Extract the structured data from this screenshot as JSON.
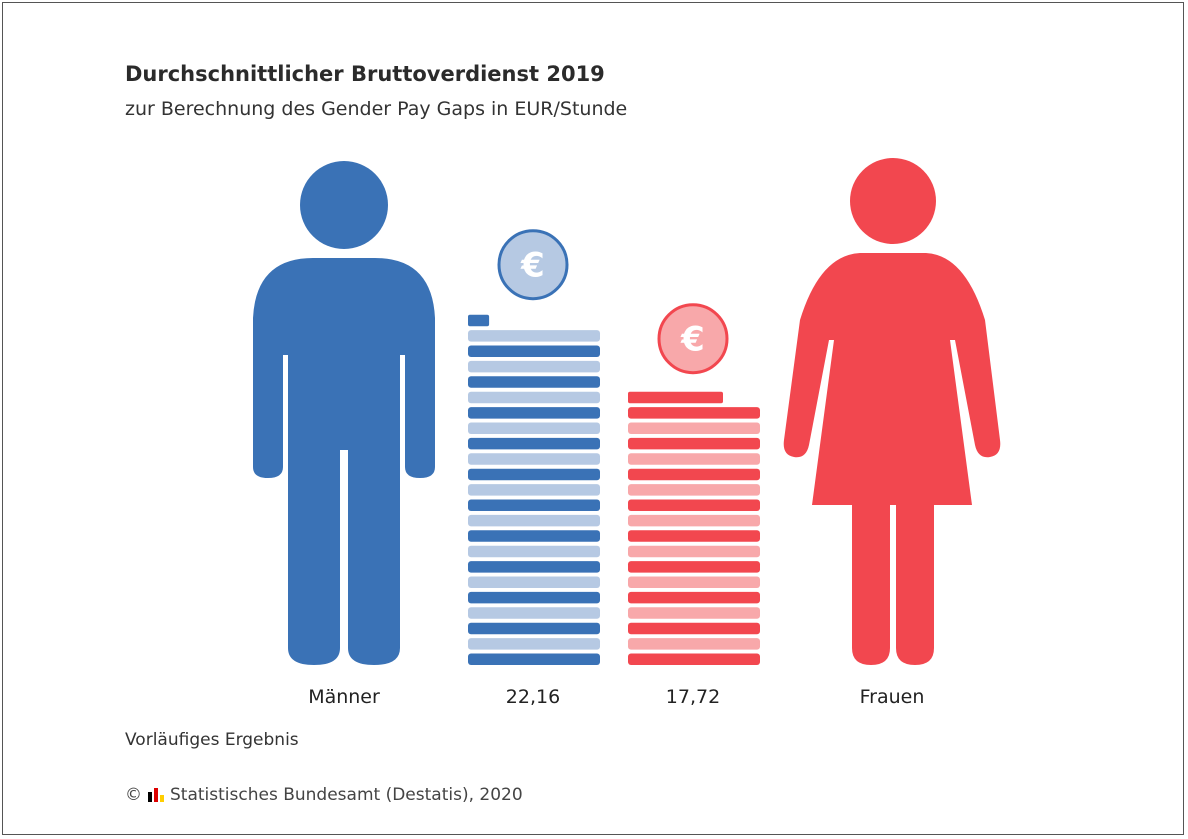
{
  "chart_data": {
    "type": "bar",
    "title": "Durchschnittlicher Bruttoverdienst 2019",
    "subtitle": "zur Berechnung des Gender Pay Gaps in EUR/Stunde",
    "categories": [
      "Männer",
      "Frauen"
    ],
    "values": [
      22.16,
      17.72
    ],
    "value_labels": [
      "22,16",
      "17,72"
    ],
    "unit": "EUR/Stunde",
    "colors": {
      "men_dark": "#3a72b6",
      "men_light": "#b6c9e3",
      "women_dark": "#f2474f",
      "women_light": "#f8a8aa"
    },
    "coin_symbol": "€",
    "icons": [
      "man-icon",
      "woman-icon",
      "euro-coin-icon"
    ]
  },
  "footer": {
    "note": "Vorläufiges Ergebnis",
    "copyright_symbol": "©",
    "source": "Statistisches Bundesamt (Destatis), 2020",
    "logo_icon": "destatis-logo-icon",
    "logo_colors": [
      "#000000",
      "#dd0000",
      "#ffce00"
    ]
  }
}
